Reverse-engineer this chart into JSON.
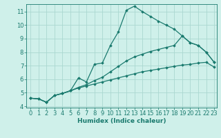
{
  "xlabel": "Humidex (Indice chaleur)",
  "bg_color": "#cff0ea",
  "line_color": "#1a7a6e",
  "grid_color": "#aad8d0",
  "xlim": [
    -0.5,
    23.3
  ],
  "ylim": [
    3.9,
    11.55
  ],
  "xticks": [
    0,
    1,
    2,
    3,
    4,
    5,
    6,
    7,
    8,
    9,
    10,
    11,
    12,
    13,
    14,
    15,
    16,
    17,
    18,
    19,
    20,
    21,
    22,
    23
  ],
  "yticks": [
    4,
    5,
    6,
    7,
    8,
    9,
    10,
    11
  ],
  "line1_x": [
    0,
    1,
    2,
    3,
    4,
    5,
    6,
    7,
    8,
    9,
    10,
    11,
    12,
    13,
    14,
    15,
    16,
    17,
    18,
    19,
    20,
    21,
    22,
    23
  ],
  "line1_y": [
    4.6,
    4.55,
    4.3,
    4.8,
    4.95,
    5.15,
    6.1,
    5.8,
    7.1,
    7.2,
    8.5,
    9.5,
    11.1,
    11.4,
    11.0,
    10.65,
    10.3,
    10.0,
    9.7,
    9.2,
    8.7,
    8.5,
    8.0,
    7.25
  ],
  "line2_x": [
    0,
    1,
    2,
    3,
    4,
    5,
    6,
    7,
    8,
    9,
    10,
    11,
    12,
    13,
    14,
    15,
    16,
    17,
    18,
    19,
    20,
    21,
    22,
    23
  ],
  "line2_y": [
    4.6,
    4.55,
    4.3,
    4.8,
    4.95,
    5.15,
    5.35,
    5.5,
    5.65,
    5.8,
    5.95,
    6.1,
    6.25,
    6.4,
    6.55,
    6.65,
    6.75,
    6.85,
    6.95,
    7.05,
    7.1,
    7.2,
    7.25,
    6.9
  ],
  "line3_x": [
    0,
    1,
    2,
    3,
    4,
    5,
    6,
    7,
    8,
    9,
    10,
    11,
    12,
    13,
    14,
    15,
    16,
    17,
    18,
    19,
    20,
    21,
    22,
    23
  ],
  "line3_y": [
    4.6,
    4.55,
    4.3,
    4.8,
    4.95,
    5.15,
    5.4,
    5.6,
    5.9,
    6.15,
    6.55,
    6.95,
    7.35,
    7.65,
    7.85,
    8.05,
    8.2,
    8.35,
    8.5,
    9.2,
    8.7,
    8.5,
    8.0,
    7.25
  ],
  "marker": "D",
  "marker_size": 1.8,
  "linewidth": 0.9,
  "font_size": 6,
  "label_fontsize": 6.5
}
